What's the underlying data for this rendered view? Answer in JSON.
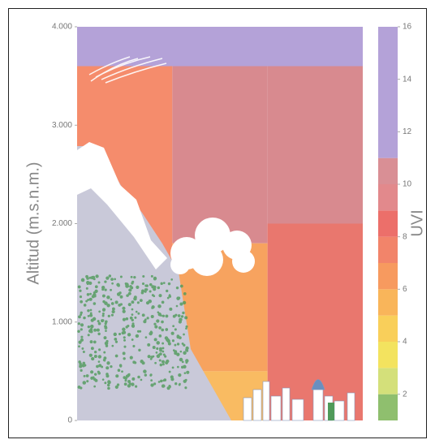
{
  "chart_data": {
    "type": "altitude-uvi",
    "y_label": "Altitud (m.s.n.m.)",
    "colorbar_label": "UVI",
    "xlim": [
      0,
      3
    ],
    "ylim": [
      0,
      4000
    ],
    "yticks": [
      0,
      {
        "value": 1000,
        "label": "1.000"
      },
      {
        "value": 2000,
        "label": "2.000"
      },
      {
        "value": 3000,
        "label": "3.000"
      },
      {
        "value": 4000,
        "label": "4.000"
      }
    ],
    "regions": [
      {
        "x": [
          0,
          3
        ],
        "alt": [
          3600,
          4000
        ],
        "uvi": 12,
        "color": "#b4a2d8"
      },
      {
        "x": [
          0,
          1
        ],
        "alt": [
          0,
          3600
        ],
        "uvi": 7,
        "color": "#f58c6c"
      },
      {
        "x": [
          1,
          2
        ],
        "alt": [
          1800,
          3600
        ],
        "uvi": 10,
        "color": "#d88a8f"
      },
      {
        "x": [
          1,
          2
        ],
        "alt": [
          500,
          1800
        ],
        "uvi": 6,
        "color": "#f7a35f"
      },
      {
        "x": [
          1,
          2
        ],
        "alt": [
          0,
          500
        ],
        "uvi": 5,
        "color": "#f9bb62"
      },
      {
        "x": [
          2,
          3
        ],
        "alt": [
          2000,
          3600
        ],
        "uvi": 10,
        "color": "#d88a8f"
      },
      {
        "x": [
          2,
          3
        ],
        "alt": [
          0,
          2000
        ],
        "uvi": 9,
        "color": "#e9776e"
      }
    ],
    "colorbar": {
      "lim": [
        1,
        16
      ],
      "ticks": [
        2,
        4,
        6,
        8,
        10,
        12,
        14,
        16
      ],
      "bins": [
        1,
        2,
        3,
        4,
        5,
        6,
        7,
        8,
        9,
        10,
        11,
        16
      ],
      "colors": [
        "#8fbf6e",
        "#d4e07a",
        "#f3e35f",
        "#f9cf5a",
        "#f9b55a",
        "#f79a5f",
        "#f2846a",
        "#ec6f6a",
        "#e2898c",
        "#d98f95",
        "#b4a2d8"
      ]
    }
  }
}
